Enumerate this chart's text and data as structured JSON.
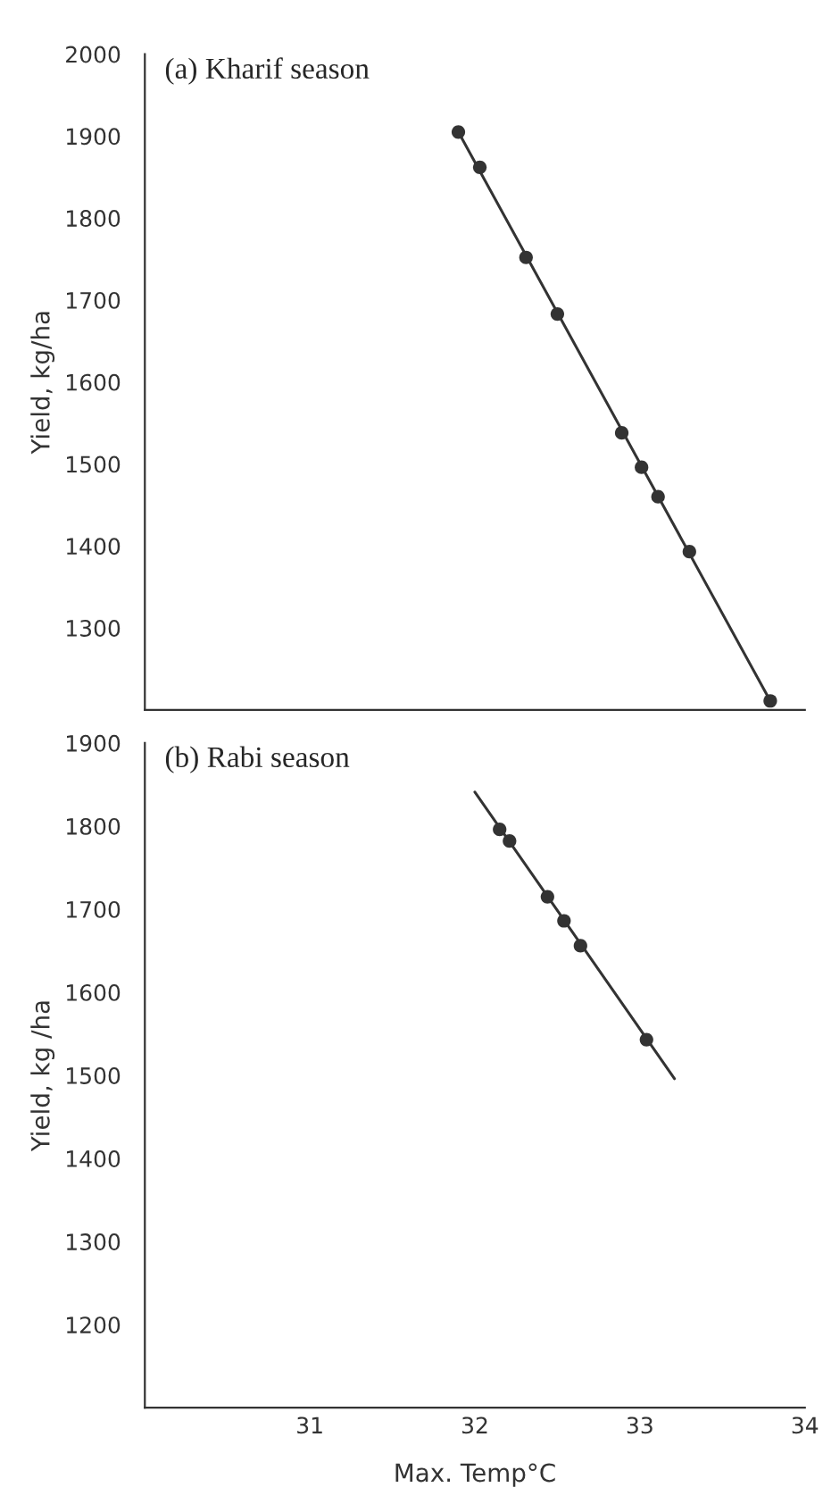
{
  "chart_data": [
    {
      "type": "scatter",
      "title": "(a) Kharif season",
      "ylabel": "Yield, kg/ha",
      "xlim": [
        30,
        34
      ],
      "xticks": [
        31,
        32,
        33,
        34
      ],
      "ylim": [
        1200,
        2000
      ],
      "yticks": [
        1300,
        1400,
        1500,
        1600,
        1700,
        1800,
        1900,
        2000
      ],
      "tick_labels": "y",
      "series": [
        {
          "marker": "circle",
          "color": "#333333",
          "x": [
            31.9,
            32.03,
            32.31,
            32.5,
            32.89,
            33.01,
            33.11,
            33.3,
            33.79
          ],
          "values": [
            1905,
            1862,
            1752,
            1683,
            1538,
            1496,
            1460,
            1393,
            1211
          ]
        },
        {
          "type": "line",
          "color": "#333333",
          "line_style": "solid",
          "x": [
            31.9,
            33.79
          ],
          "values": [
            1905,
            1211
          ]
        }
      ]
    },
    {
      "type": "scatter",
      "title": "(b) Rabi season",
      "xlabel": "Max. Temp°C",
      "ylabel": "Yield, kg /ha",
      "xlim": [
        30,
        34
      ],
      "xticks": [
        31,
        32,
        33,
        34
      ],
      "ylim": [
        1100,
        1900
      ],
      "yticks": [
        1200,
        1300,
        1400,
        1500,
        1600,
        1700,
        1800,
        1900
      ],
      "series": [
        {
          "marker": "circle",
          "color": "#333333",
          "x": [
            32.15,
            32.21,
            32.44,
            32.54,
            32.64,
            33.04
          ],
          "values": [
            1796,
            1782,
            1715,
            1686,
            1656,
            1543
          ]
        },
        {
          "type": "line",
          "color": "#333333",
          "line_style": "solid",
          "x": [
            32.0,
            33.21
          ],
          "values": [
            1841,
            1496
          ]
        }
      ]
    }
  ]
}
